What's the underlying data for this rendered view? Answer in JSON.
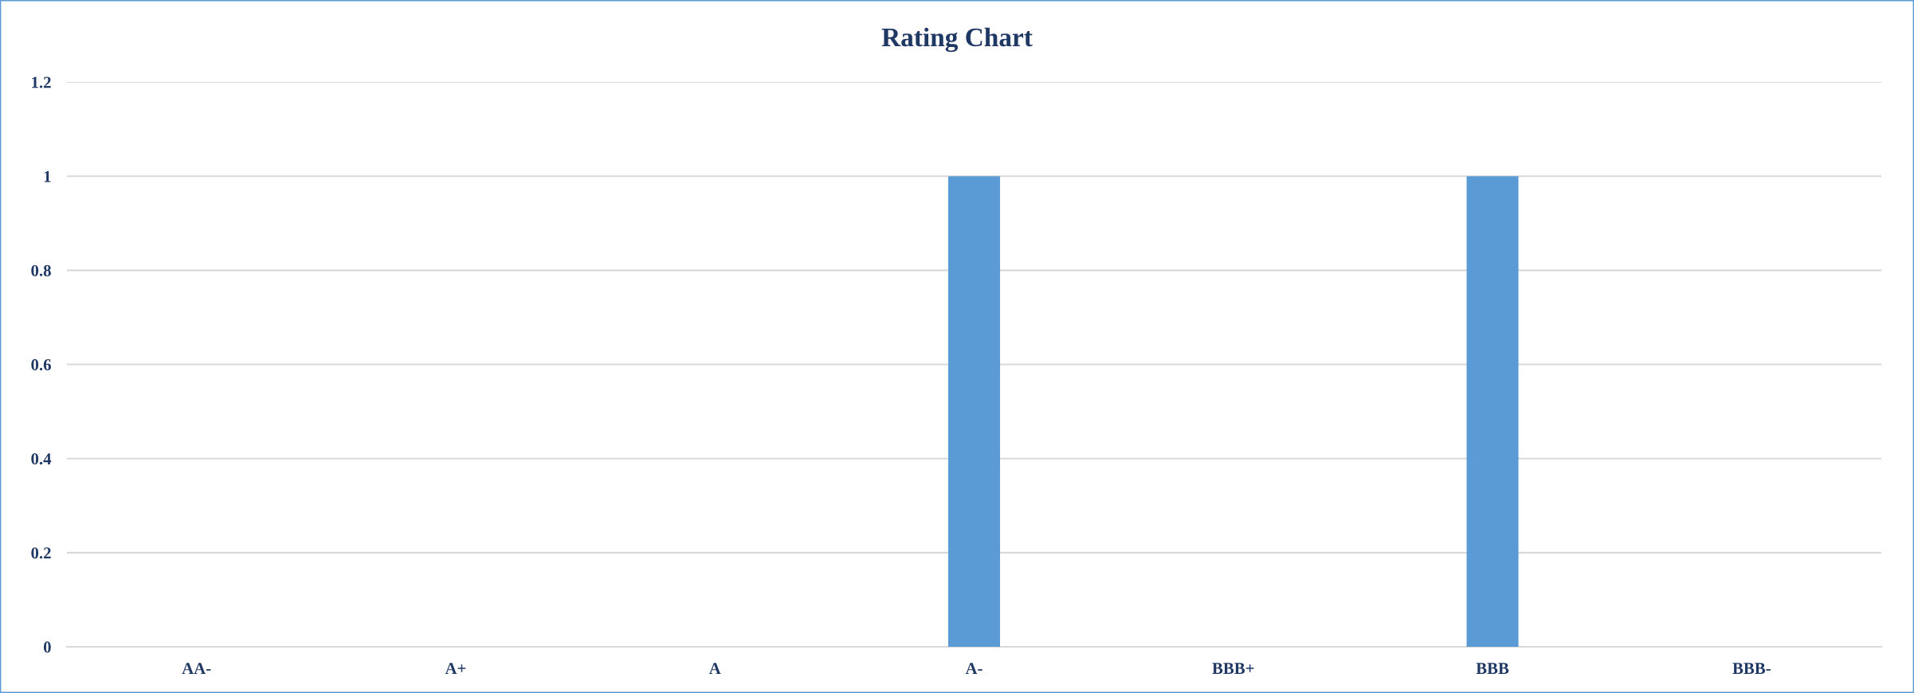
{
  "chart_data": {
    "type": "bar",
    "title": "Rating Chart",
    "categories": [
      "AA-",
      "A+",
      "A",
      "A-",
      "BBB+",
      "BBB",
      "BBB-"
    ],
    "values": [
      0,
      0,
      0,
      1,
      0,
      1,
      0
    ],
    "color": "#5b9bd5",
    "ylim": [
      0,
      1.2
    ],
    "yticks": [
      0,
      0.2,
      0.4,
      0.6,
      0.8,
      1,
      1.2
    ],
    "grid": "y"
  }
}
